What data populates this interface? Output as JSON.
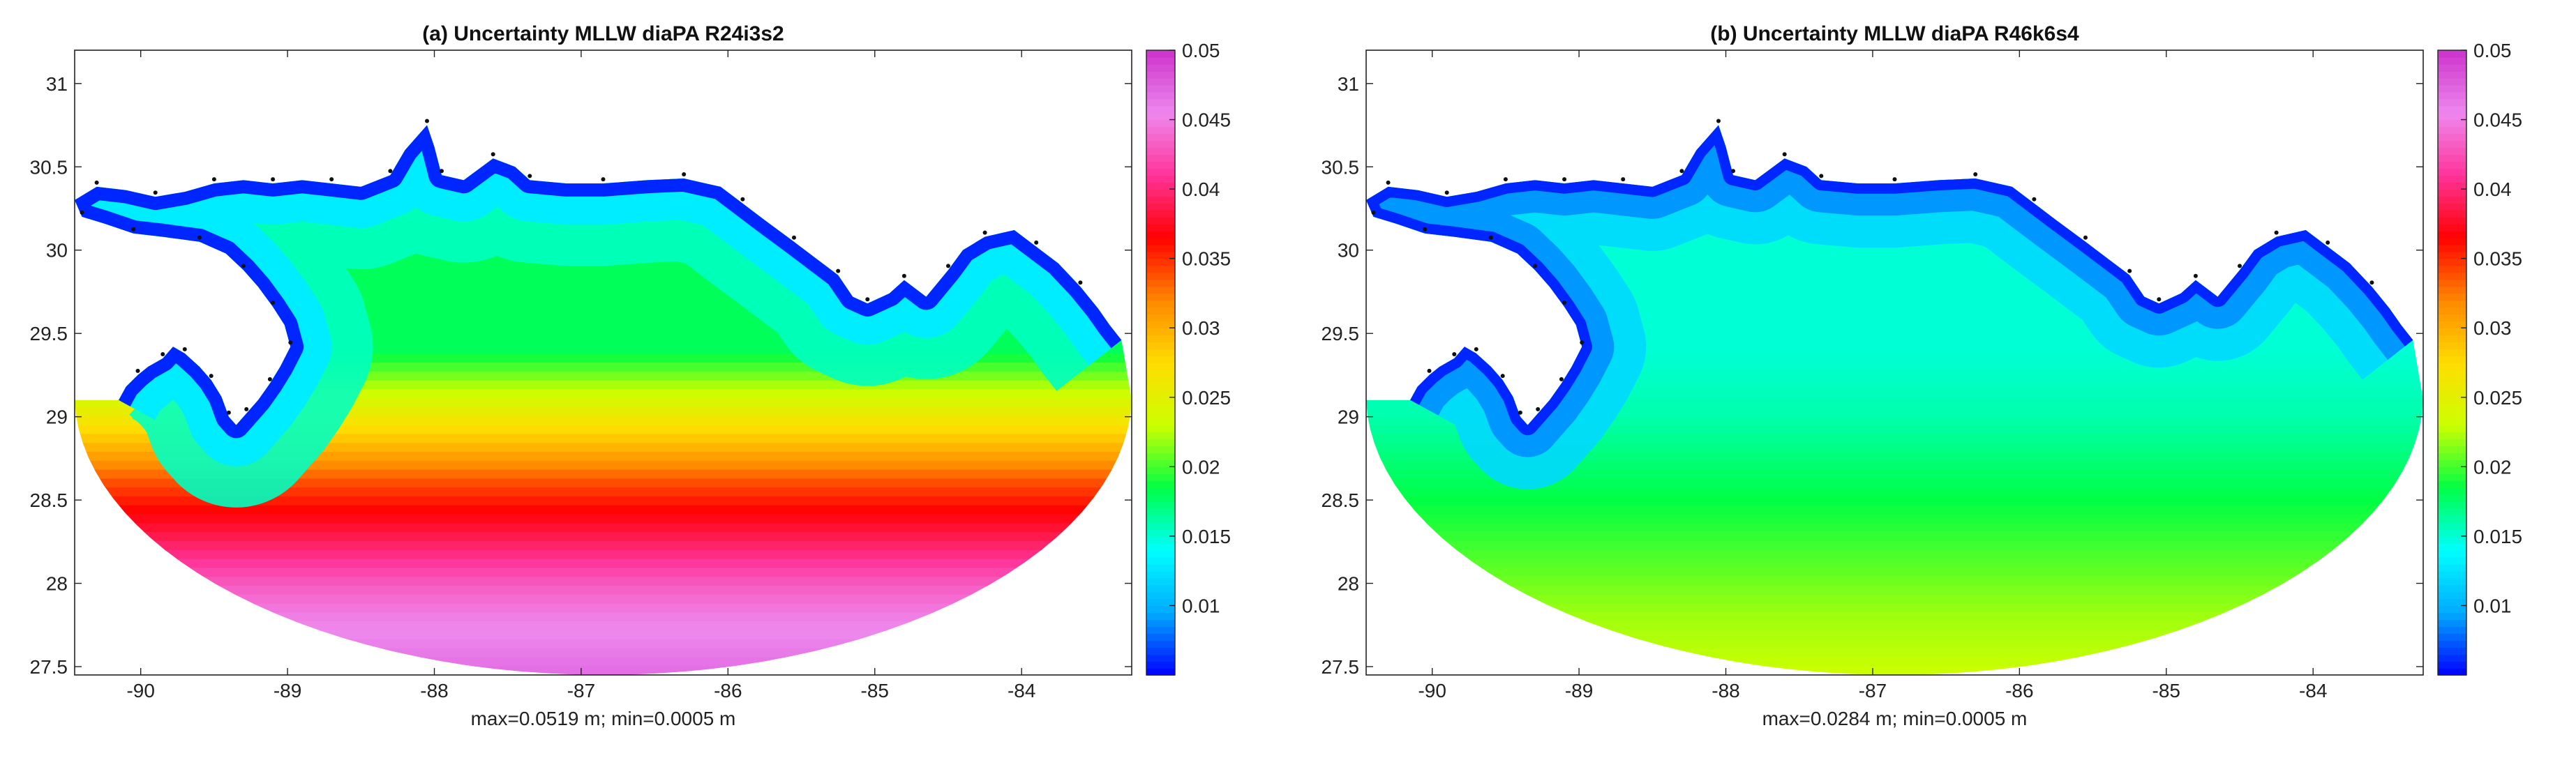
{
  "chart_data": [
    {
      "type": "heatmap",
      "title": "(a) Uncertainty MLLW diaPA R24i3s2",
      "xlabel": "max=0.0519 m; min=0.0005 m",
      "ylabel": "",
      "xlim": [
        -90.45,
        -83.25
      ],
      "ylim": [
        27.45,
        31.2
      ],
      "xticks": [
        -90,
        -89,
        -88,
        -87,
        -86,
        -85,
        -84
      ],
      "yticks": [
        27.5,
        28,
        28.5,
        29,
        29.5,
        30,
        30.5,
        31
      ],
      "xtick_labels": [
        "-90",
        "-89",
        "-88",
        "-87",
        "-86",
        "-85",
        "-84"
      ],
      "ytick_labels": [
        "27.5",
        "28",
        "28.5",
        "29",
        "29.5",
        "30",
        "30.5",
        "31"
      ],
      "colorbar": {
        "clim": [
          0.005,
          0.05
        ],
        "ticks": [
          0.01,
          0.015,
          0.02,
          0.025,
          0.03,
          0.035,
          0.04,
          0.045,
          0.05
        ],
        "tick_labels": [
          "0.01",
          "0.015",
          "0.02",
          "0.025",
          "0.03",
          "0.035",
          "0.04",
          "0.045",
          "0.05"
        ],
        "colormap": [
          "#0000ff",
          "#00aaff",
          "#00ffff",
          "#00ff44",
          "#ccff00",
          "#ffdd00",
          "#ff8800",
          "#ff0000",
          "#ff3399",
          "#ee88ee",
          "#cc33cc"
        ]
      },
      "field": {
        "max": 0.0519,
        "min": 0.0005,
        "lat_profile": [
          [
            29.4,
            0.018
          ],
          [
            29.2,
            0.022
          ],
          [
            29.0,
            0.026
          ],
          [
            28.8,
            0.03
          ],
          [
            28.6,
            0.034
          ],
          [
            28.4,
            0.037
          ],
          [
            28.2,
            0.04
          ],
          [
            28.0,
            0.043
          ],
          [
            27.8,
            0.045
          ],
          [
            27.45,
            0.047
          ]
        ],
        "coastal_value": 0.013,
        "coastal_band_deg": 0.45
      }
    },
    {
      "type": "heatmap",
      "title": "(b) Uncertainty MLLW diaPA R46k6s4",
      "xlabel": "max=0.0284 m; min=0.0005 m",
      "ylabel": "",
      "xlim": [
        -90.45,
        -83.25
      ],
      "ylim": [
        27.45,
        31.2
      ],
      "xticks": [
        -90,
        -89,
        -88,
        -87,
        -86,
        -85,
        -84
      ],
      "yticks": [
        27.5,
        28,
        28.5,
        29,
        29.5,
        30,
        30.5,
        31
      ],
      "xtick_labels": [
        "-90",
        "-89",
        "-88",
        "-87",
        "-86",
        "-85",
        "-84"
      ],
      "ytick_labels": [
        "27.5",
        "28",
        "28.5",
        "29",
        "29.5",
        "30",
        "30.5",
        "31"
      ],
      "colorbar": {
        "clim": [
          0.005,
          0.05
        ],
        "ticks": [
          0.01,
          0.015,
          0.02,
          0.025,
          0.03,
          0.035,
          0.04,
          0.045,
          0.05
        ],
        "tick_labels": [
          "0.01",
          "0.015",
          "0.02",
          "0.025",
          "0.03",
          "0.035",
          "0.04",
          "0.045",
          "0.05"
        ],
        "colormap": [
          "#0000ff",
          "#00aaff",
          "#00ffff",
          "#00ff44",
          "#ccff00",
          "#ffdd00",
          "#ff8800",
          "#ff0000",
          "#ff3399",
          "#ee88ee",
          "#cc33cc"
        ]
      },
      "field": {
        "max": 0.0284,
        "min": 0.0005,
        "lat_profile": [
          [
            29.4,
            0.015
          ],
          [
            29.0,
            0.016
          ],
          [
            28.8,
            0.017
          ],
          [
            28.6,
            0.018
          ],
          [
            28.4,
            0.019
          ],
          [
            28.2,
            0.02
          ],
          [
            28.0,
            0.021
          ],
          [
            27.8,
            0.022
          ],
          [
            27.45,
            0.023
          ]
        ],
        "coastal_value": 0.009,
        "coastal_band_deg": 0.35
      }
    }
  ]
}
